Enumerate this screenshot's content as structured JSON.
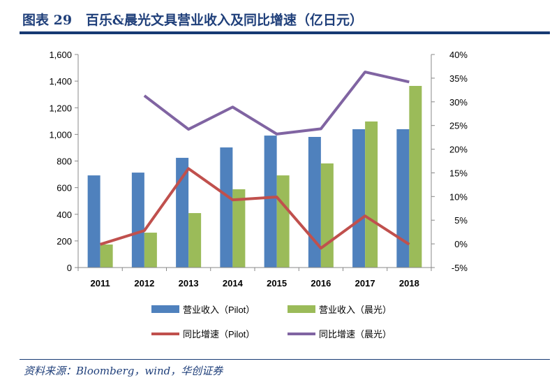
{
  "title": "图表 29   百乐&晨光文具营业收入及同比增速（亿日元）",
  "source": "资料来源：Bloomberg，wind，华创证券",
  "chart_data": {
    "type": "bar+line",
    "categories": [
      "2011",
      "2012",
      "2013",
      "2014",
      "2015",
      "2016",
      "2017",
      "2018"
    ],
    "left_axis": {
      "range": [
        0,
        1600
      ],
      "ticks": [
        "0",
        "200",
        "400",
        "600",
        "800",
        "1,000",
        "1,200",
        "1,400",
        "1,600"
      ],
      "tick_values": [
        0,
        200,
        400,
        600,
        800,
        1000,
        1200,
        1400,
        1600
      ]
    },
    "right_axis": {
      "range": [
        -5,
        40
      ],
      "ticks": [
        "-5%",
        "0%",
        "5%",
        "10%",
        "15%",
        "20%",
        "25%",
        "30%",
        "35%",
        "40%"
      ],
      "tick_values": [
        -5,
        0,
        5,
        10,
        15,
        20,
        25,
        30,
        35,
        40
      ]
    },
    "grid": false,
    "legend_position": "bottom",
    "bar_series": [
      {
        "name": "营业收入（Pilot）",
        "color": "#4f81bd",
        "values": [
          692,
          713,
          824,
          902,
          991,
          981,
          1039,
          1039
        ]
      },
      {
        "name": "营业收入（晨光）",
        "color": "#9bbb59",
        "values": [
          173,
          262,
          409,
          588,
          692,
          782,
          1097,
          1364
        ]
      }
    ],
    "line_series": [
      {
        "name": "同比增速（Pilot）",
        "color": "#c0504d",
        "axis": "right",
        "values": [
          -0.1,
          2.8,
          15.9,
          9.3,
          9.9,
          -0.9,
          5.9,
          -0.1
        ]
      },
      {
        "name": "同比增速（晨光）",
        "color": "#8064a2",
        "axis": "right",
        "values": [
          null,
          31.3,
          24.2,
          28.9,
          23.2,
          24.3,
          36.3,
          34.2
        ]
      }
    ]
  }
}
